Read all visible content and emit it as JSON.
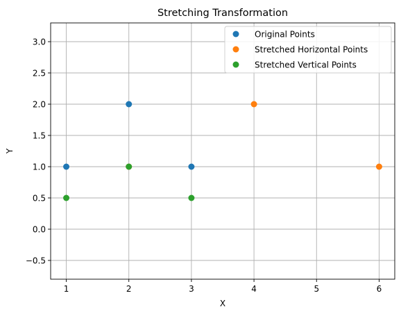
{
  "chart_data": {
    "type": "scatter",
    "title": "Stretching Transformation",
    "xlabel": "X",
    "ylabel": "Y",
    "xlim": [
      0.75,
      6.25
    ],
    "ylim": [
      -0.8,
      3.3
    ],
    "xticks": [
      1,
      2,
      3,
      4,
      5,
      6
    ],
    "yticks": [
      -0.5,
      0.0,
      0.5,
      1.0,
      1.5,
      2.0,
      2.5,
      3.0
    ],
    "xtick_labels": [
      "1",
      "2",
      "3",
      "4",
      "5",
      "6"
    ],
    "ytick_labels": [
      "−0.5",
      "0.0",
      "0.5",
      "1.0",
      "1.5",
      "2.0",
      "2.5",
      "3.0"
    ],
    "grid": true,
    "legend_position": "top-right",
    "series": [
      {
        "name": "Original Points",
        "color": "#1f77b4",
        "x": [
          1,
          2,
          3
        ],
        "y": [
          1,
          2,
          1
        ]
      },
      {
        "name": "Stretched Horizontal Points",
        "color": "#ff7f0e",
        "x": [
          2,
          4,
          6
        ],
        "y": [
          1,
          2,
          1
        ]
      },
      {
        "name": "Stretched Vertical Points",
        "color": "#2ca02c",
        "x": [
          1,
          2,
          3
        ],
        "y": [
          0.5,
          1,
          0.5
        ]
      }
    ]
  }
}
